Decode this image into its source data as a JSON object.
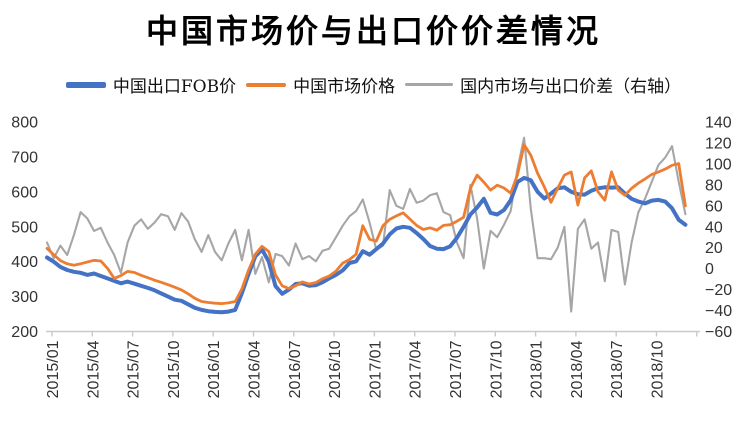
{
  "chart_data": {
    "type": "line",
    "title": "中国市场价与出口价价差情况",
    "frequency": "semi-monthly, 2015/01 to 2018/12 (2 points per month)",
    "x_tick_labels": [
      "2015/01",
      "2015/04",
      "2015/07",
      "2015/10",
      "2016/01",
      "2016/04",
      "2016/07",
      "2016/10",
      "2017/01",
      "2017/04",
      "2017/07",
      "2017/10",
      "2018/01",
      "2018/04",
      "2018/07",
      "2018/10"
    ],
    "left_axis": {
      "min": 200,
      "max": 800,
      "step": 100,
      "ticks": [
        200,
        300,
        400,
        500,
        600,
        700,
        800
      ]
    },
    "right_axis": {
      "min": -60,
      "max": 140,
      "step": 20,
      "ticks": [
        -60,
        -40,
        -20,
        0,
        20,
        40,
        60,
        80,
        100,
        120,
        140
      ]
    },
    "grid": "off",
    "legend_position": "top",
    "series": [
      {
        "name": "中国出口FOB价",
        "axis": "left",
        "color": "#4472C4",
        "values": [
          412,
          400,
          385,
          376,
          371,
          368,
          362,
          366,
          359,
          352,
          345,
          338,
          343,
          337,
          331,
          325,
          318,
          309,
          300,
          291,
          288,
          278,
          268,
          262,
          258,
          256,
          255,
          257,
          262,
          310,
          365,
          415,
          435,
          400,
          330,
          308,
          320,
          336,
          338,
          331,
          333,
          341,
          352,
          362,
          375,
          396,
          401,
          430,
          420,
          436,
          452,
          478,
          495,
          500,
          497,
          482,
          465,
          445,
          437,
          436,
          444,
          468,
          500,
          535,
          555,
          580,
          540,
          535,
          548,
          576,
          628,
          640,
          633,
          600,
          581,
          595,
          610,
          613,
          600,
          593,
          592,
          603,
          610,
          613,
          612,
          613,
          595,
          580,
          572,
          567,
          575,
          577,
          572,
          553,
          520,
          506
        ]
      },
      {
        "name": "中国市场价格",
        "axis": "left",
        "color": "#ED7D31",
        "values": [
          438,
          420,
          403,
          394,
          390,
          394,
          399,
          404,
          402,
          381,
          352,
          360,
          372,
          369,
          361,
          354,
          347,
          341,
          334,
          327,
          319,
          308,
          295,
          286,
          283,
          281,
          280,
          282,
          286,
          322,
          376,
          421,
          444,
          429,
          362,
          331,
          323,
          331,
          342,
          336,
          340,
          351,
          359,
          373,
          396,
          406,
          421,
          503,
          464,
          459,
          503,
          521,
          531,
          540,
          522,
          504,
          492,
          497,
          490,
          504,
          506,
          516,
          527,
          610,
          648,
          628,
          605,
          619,
          611,
          596,
          648,
          735,
          705,
          653,
          614,
          570,
          610,
          648,
          657,
          562,
          640,
          660,
          600,
          576,
          657,
          605,
          590,
          610,
          625,
          637,
          650,
          657,
          665,
          676,
          681,
          560
        ]
      },
      {
        "name": "国内市场与出口价差（右轴）",
        "axis": "right",
        "color": "#A6A6A6",
        "values": [
          25,
          10,
          22,
          13,
          32,
          54,
          48,
          36,
          39,
          25,
          13,
          -4,
          25,
          41,
          47,
          38,
          44,
          52,
          50,
          37,
          53,
          45,
          28,
          16,
          32,
          16,
          8,
          24,
          37,
          8,
          37,
          -5,
          11,
          -13,
          14,
          12,
          3,
          24,
          9,
          12,
          7,
          17,
          19,
          30,
          41,
          50,
          55,
          66,
          44,
          18,
          22,
          75,
          60,
          57,
          76,
          63,
          65,
          70,
          72,
          54,
          51,
          25,
          10,
          80,
          48,
          0,
          36,
          30,
          42,
          55,
          95,
          125,
          57,
          10,
          10,
          9,
          20,
          40,
          -41,
          38,
          47,
          19,
          25,
          -12,
          37,
          35,
          -15,
          25,
          54,
          67,
          83,
          99,
          106,
          117,
          83,
          52
        ]
      }
    ]
  }
}
